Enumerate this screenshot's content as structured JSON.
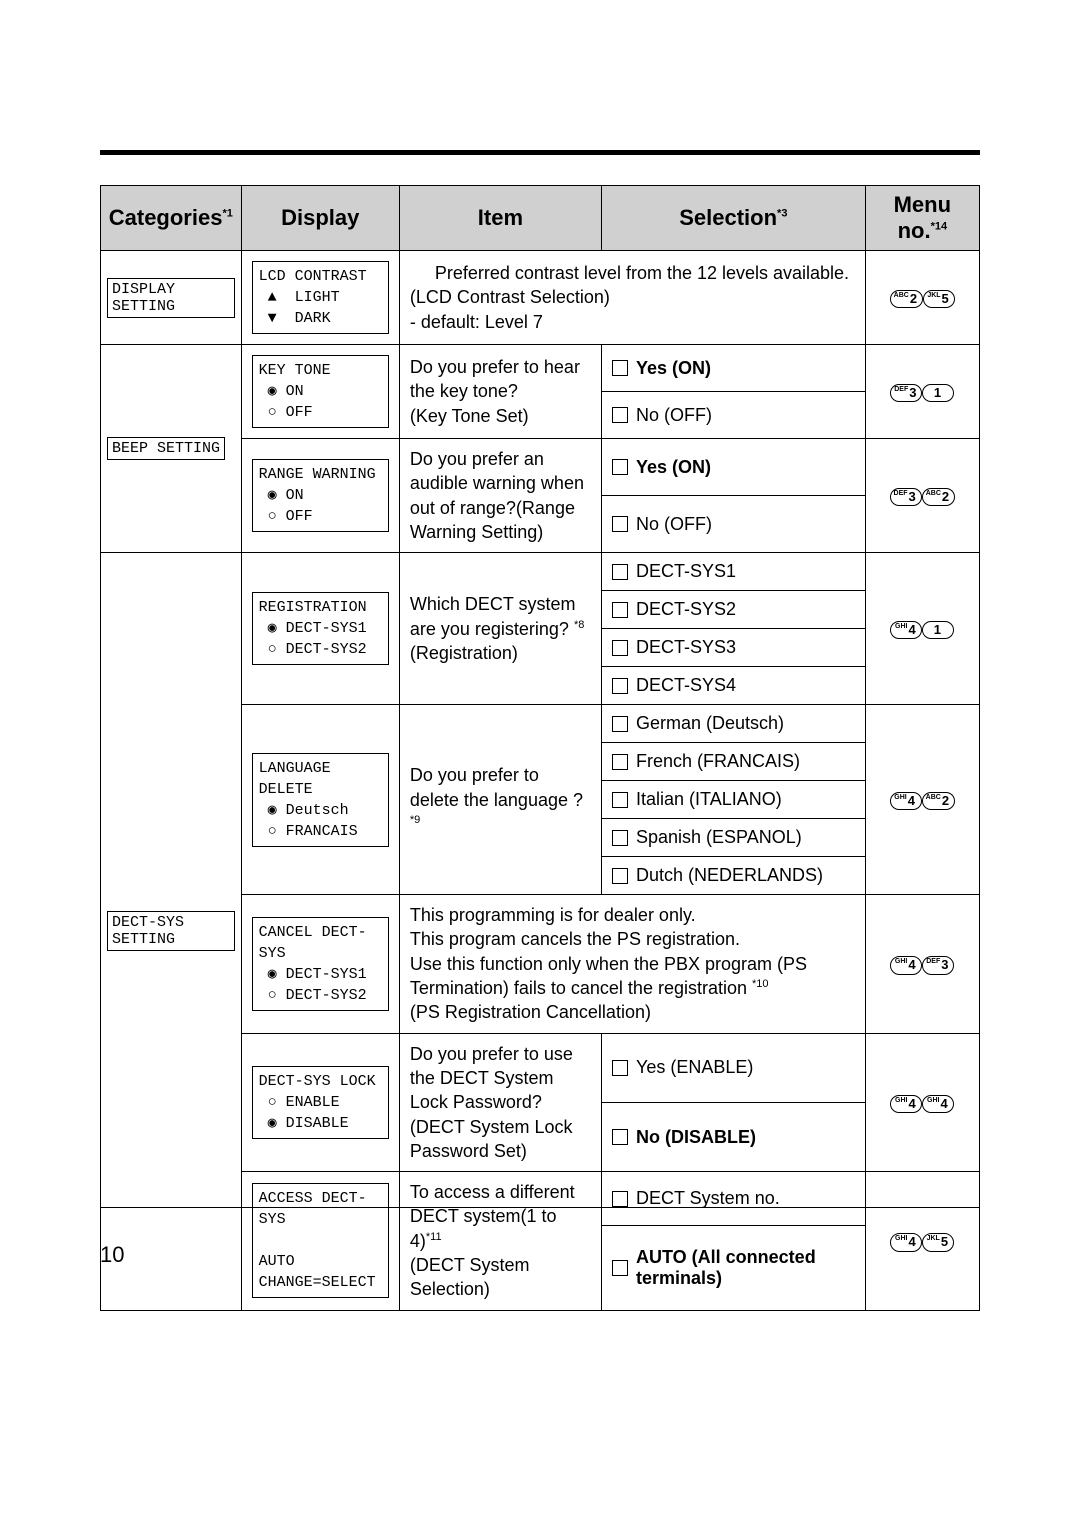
{
  "headers": {
    "categories": "Categories",
    "categories_sup": "*1",
    "display": "Display",
    "item": "Item",
    "selection": "Selection",
    "selection_sup": "*3",
    "menuno": "Menu no.",
    "menuno_sup": "*14"
  },
  "rows": {
    "r1": {
      "cat": "DISPLAY SETTING",
      "disp": "LCD CONTRAST\n ▲  LIGHT\n ▼  DARK",
      "item": "     Preferred contrast level from the 12 levels available.  (LCD Contrast Selection)\n- default: Level 7",
      "menu": [
        {
          "sm": "ABC",
          "n": "2"
        },
        {
          "sm": "JKL",
          "n": "5"
        }
      ]
    },
    "r2": {
      "cat": "BEEP SETTING",
      "disp": "KEY TONE\n ◉ ON\n ○ OFF",
      "item": "Do you prefer to hear the key tone?\n(Key Tone Set)",
      "sel": [
        {
          "label": "Yes (ON)",
          "bold": true
        },
        {
          "label": "No (OFF)",
          "bold": false
        }
      ],
      "menu": [
        {
          "sm": "DEF",
          "n": "3"
        },
        {
          "sm": "",
          "n": "1"
        }
      ]
    },
    "r3": {
      "disp": "RANGE WARNING\n ◉ ON\n ○ OFF",
      "item": "Do you prefer an audible warning when out of range?(Range Warning Setting)",
      "sel": [
        {
          "label": "Yes (ON)",
          "bold": true
        },
        {
          "label": "No (OFF)",
          "bold": false
        }
      ],
      "menu": [
        {
          "sm": "DEF",
          "n": "3"
        },
        {
          "sm": "ABC",
          "n": "2"
        }
      ]
    },
    "r4": {
      "cat": "DECT-SYS SETTING",
      "disp": "REGISTRATION\n ◉ DECT-SYS1\n ○ DECT-SYS2",
      "item": "Which DECT system are you registering? ",
      "item_sup": "*8",
      "item2": "(Registration)",
      "sel": [
        {
          "label": "DECT-SYS1"
        },
        {
          "label": "DECT-SYS2"
        },
        {
          "label": "DECT-SYS3"
        },
        {
          "label": "DECT-SYS4"
        }
      ],
      "menu": [
        {
          "sm": "GHI",
          "n": "4"
        },
        {
          "sm": "",
          "n": "1"
        }
      ]
    },
    "r5": {
      "disp": "LANGUAGE DELETE\n ◉ Deutsch\n ○ FRANCAIS",
      "item": "Do you prefer to delete the language ? ",
      "item_sup": "*9",
      "sel": [
        {
          "label": "German (Deutsch)"
        },
        {
          "label": "French (FRANCAIS)"
        },
        {
          "label": "Italian (ITALIANO)"
        },
        {
          "label": "Spanish (ESPANOL)"
        },
        {
          "label": "Dutch (NEDERLANDS)"
        }
      ],
      "menu": [
        {
          "sm": "GHI",
          "n": "4"
        },
        {
          "sm": "ABC",
          "n": "2"
        }
      ]
    },
    "r6": {
      "disp": "CANCEL DECT-SYS\n ◉ DECT-SYS1\n ○ DECT-SYS2",
      "item_pre": "This programming is for dealer only.\nThis program cancels the PS registration.\nUse this function only when the PBX program (PS Termination) fails to cancel the registration ",
      "item_sup": "*10",
      "item_post": "(PS Registration Cancellation)",
      "menu": [
        {
          "sm": "GHI",
          "n": "4"
        },
        {
          "sm": "DEF",
          "n": "3"
        }
      ]
    },
    "r7": {
      "disp": "DECT-SYS LOCK\n ○ ENABLE\n ◉ DISABLE",
      "item": "Do you prefer to use the DECT System Lock Password?\n(DECT System Lock Password Set)",
      "sel": [
        {
          "label": "Yes  (ENABLE)",
          "bold": false
        },
        {
          "label": "No (DISABLE)",
          "bold": true
        }
      ],
      "menu": [
        {
          "sm": "GHI",
          "n": "4"
        },
        {
          "sm": "GHI",
          "n": "4"
        }
      ]
    },
    "r8": {
      "disp": "ACCESS DECT-SYS\n          AUTO\nCHANGE=SELECT",
      "item": "To access a different DECT system(1 to 4)",
      "item_sup": "*11",
      "item2": "(DECT System Selection)",
      "sel": [
        {
          "label": "DECT System no."
        },
        {
          "label": "AUTO  (All connected terminals)",
          "bold": true
        }
      ],
      "menu": [
        {
          "sm": "GHI",
          "n": "4"
        },
        {
          "sm": "JKL",
          "n": "5"
        }
      ]
    }
  },
  "page_number": "10"
}
